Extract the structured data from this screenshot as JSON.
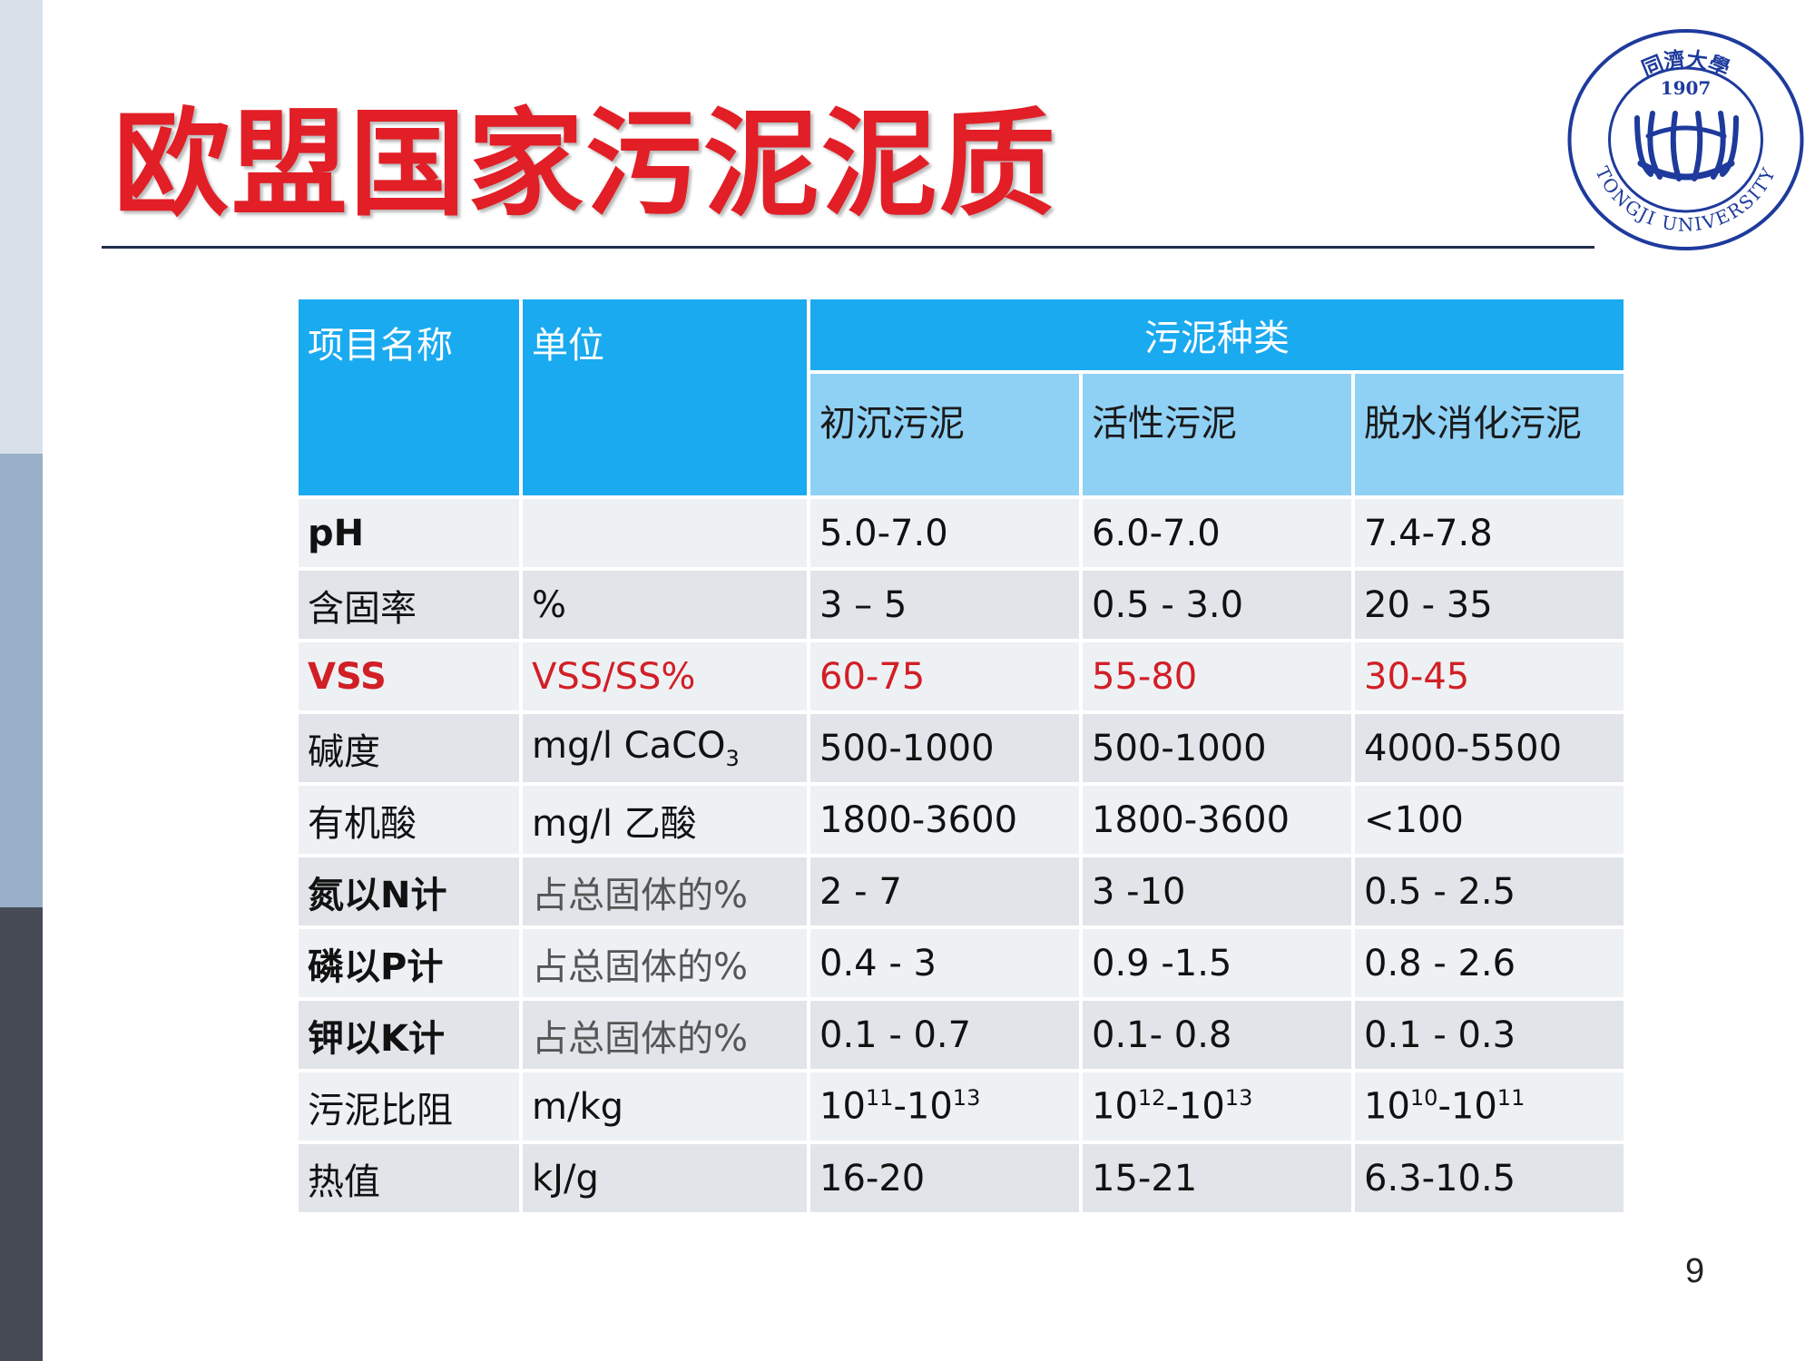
{
  "slide": {
    "title": "欧盟国家污泥泥质",
    "page_number": "9"
  },
  "logo": {
    "year": "1907",
    "university_name_en": "TONGJI UNIVERSITY",
    "university_name_cn": "同濟大學",
    "color": "#1e3a9c"
  },
  "table": {
    "header": {
      "param": "项目名称",
      "unit": "单位",
      "group": "污泥种类",
      "types": [
        "初沉污泥",
        "活性污泥",
        "脱水消化污泥"
      ]
    },
    "rows": [
      {
        "param": "pH",
        "unit": "",
        "primary": "5.0-7.0",
        "activated": "6.0-7.0",
        "digested": "7.4-7.8"
      },
      {
        "param": "含固率",
        "unit": "%",
        "primary": "3 – 5",
        "activated": "0.5 - 3.0",
        "digested": "20 - 35"
      },
      {
        "param": "VSS",
        "unit": "VSS/SS%",
        "primary": "60-75",
        "activated": "55-80",
        "digested": "30-45",
        "highlight": true
      },
      {
        "param": "碱度",
        "unit": "mg/l CaCO",
        "unit_sub": "3",
        "primary": "500-1000",
        "activated": "500-1000",
        "digested": "4000-5500"
      },
      {
        "param": "有机酸",
        "unit": "mg/l 乙酸",
        "primary": "1800-3600",
        "activated": "1800-3600",
        "digested": "<100"
      },
      {
        "param": "氮以N计",
        "unit": "占总固体的%",
        "primary": "2 - 7",
        "activated": "3 -10",
        "digested": "0.5 - 2.5"
      },
      {
        "param": "磷以P计",
        "unit": "占总固体的%",
        "primary": "0.4 - 3",
        "activated": "0.9 -1.5",
        "digested": "0.8 - 2.6"
      },
      {
        "param": "钾以K计",
        "unit": "占总固体的%",
        "primary": "0.1 - 0.7",
        "activated": "0.1- 0.8",
        "digested": "0.1 - 0.3"
      },
      {
        "param": "污泥比阻",
        "unit": "m/kg",
        "primary": {
          "b1": "10",
          "e1": "11",
          "b2": "-10",
          "e2": "13"
        },
        "activated": {
          "b1": "10",
          "e1": "12",
          "b2": "-10",
          "e2": "13"
        },
        "digested": {
          "b1": "10",
          "e1": "10",
          "b2": "-10",
          "e2": "11"
        }
      },
      {
        "param": "热值",
        "unit": "kJ/g",
        "primary": "16-20",
        "activated": "15-21",
        "digested": "6.3-10.5"
      }
    ]
  },
  "colors": {
    "title": "#e21e26",
    "header_dark": "#1aaaf0",
    "header_light": "#8fd1f5",
    "highlight_text": "#d11f26"
  }
}
